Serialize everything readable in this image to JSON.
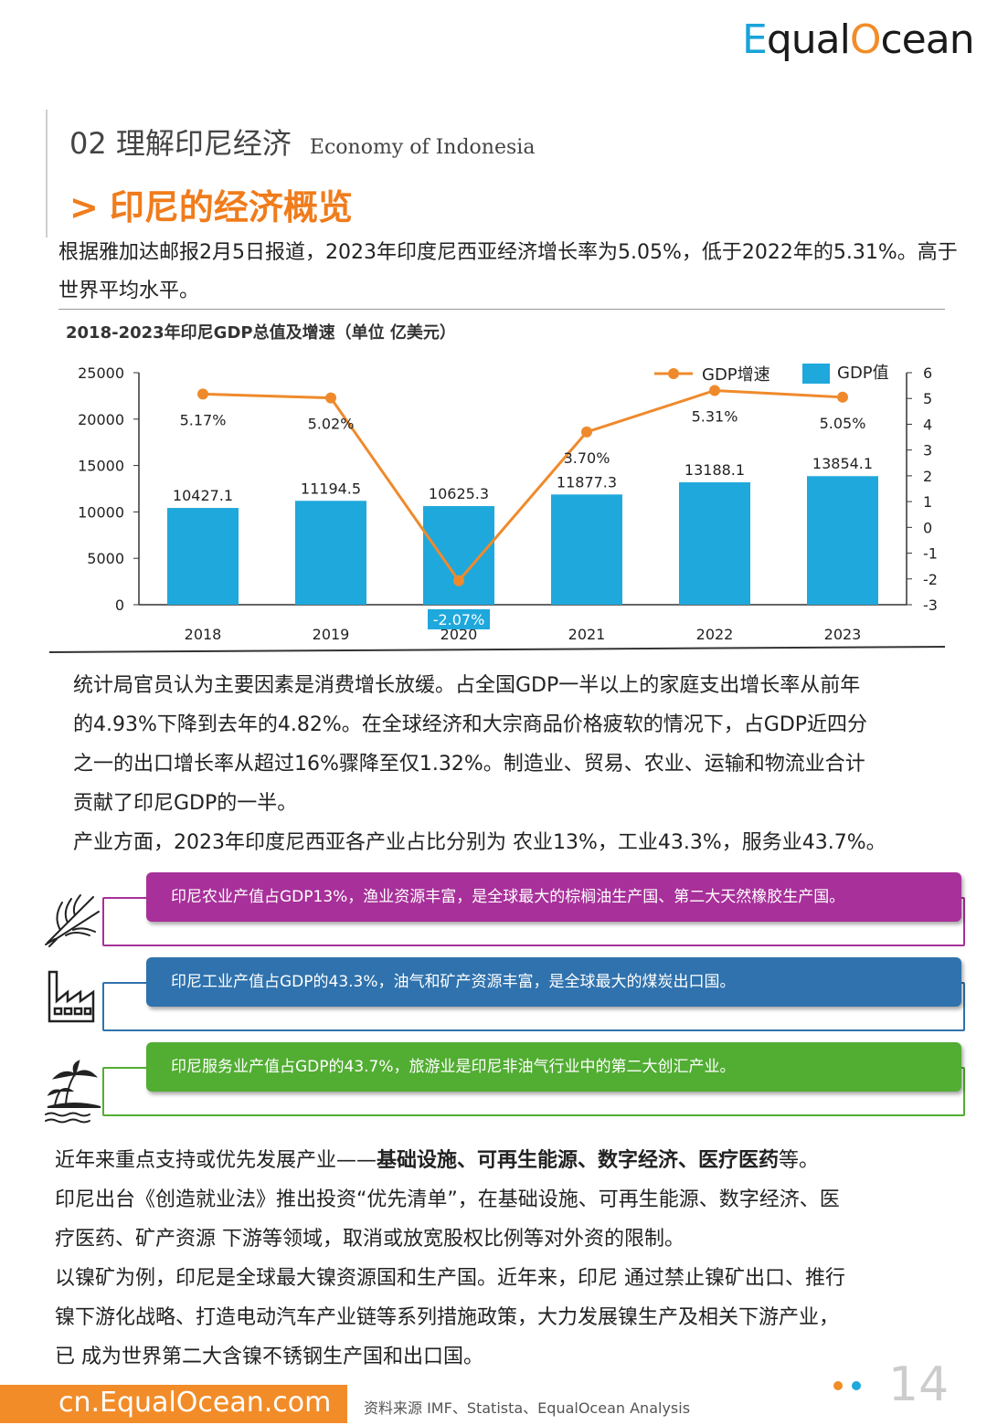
{
  "brand": {
    "logo_e": "E",
    "logo_text": "qual",
    "logo_o": "O",
    "logo_tail": "cean"
  },
  "section": {
    "number_title": "02 理解印尼经济",
    "english": "Economy of Indonesia"
  },
  "heading": {
    "chevron": ">",
    "title": "印尼的经济概览"
  },
  "intro": "根据雅加达邮报2月5日报道，2023年印度尼西亚经济增长率为5.05%，低于2022年的5.31%。高于世界平均水平。",
  "chart_title": "2018-2023年印尼GDP总值及增速（单位  亿美元）",
  "chart_data": {
    "type": "bar",
    "categories": [
      "2018",
      "2019",
      "2020",
      "2021",
      "2022",
      "2023"
    ],
    "series": [
      {
        "name": "GDP值",
        "type": "bar",
        "axis": "left",
        "values": [
          10427.1,
          11194.5,
          10625.3,
          11877.3,
          13188.1,
          13854.1
        ],
        "color": "#1fa8dc"
      },
      {
        "name": "GDP增速",
        "type": "line",
        "axis": "right",
        "values": [
          5.17,
          5.02,
          -2.07,
          3.7,
          5.31,
          5.05
        ],
        "color": "#ef8a2c"
      }
    ],
    "bar_labels": [
      "10427.1",
      "11194.5",
      "10625.3",
      "11877.3",
      "13188.1",
      "13854.1"
    ],
    "line_labels": [
      "5.17%",
      "5.02%",
      "-2.07%",
      "3.70%",
      "5.31%",
      "5.05%"
    ],
    "ylim_left": [
      0,
      25000
    ],
    "yticks_left": [
      "0",
      "5000",
      "10000",
      "15000",
      "20000",
      "25000"
    ],
    "ylim_right": [
      -3,
      6
    ],
    "yticks_right": [
      "-3",
      "-2",
      "-1",
      "0",
      "1",
      "2",
      "3",
      "4",
      "5",
      "6"
    ],
    "legend": "top-right",
    "grid": false
  },
  "paragraph1": [
    "统计局官员认为主要因素是消费增长放缓。占全国GDP一半以上的家庭支出增长率从前年",
    "的4.93%下降到去年的4.82%。在全球经济和大宗商品价格疲软的情况下，占GDP近四分",
    "之一的出口增长率从超过16%骤降至仅1.32%。制造业、贸易、农业、运输和物流业合计",
    "贡献了印尼GDP的一半。",
    "产业方面，2023年印度尼西亚各产业占比分别为  农业13%，工业43.3%，服务业43.7%。"
  ],
  "sectors": [
    {
      "icon": "wheat-icon",
      "text": "印尼农业产值占GDP13%，渔业资源丰富，是全球最大的棕榈油生产国、第二大天然橡胶生产国。",
      "color": "#a8309a"
    },
    {
      "icon": "factory-icon",
      "text": "印尼工业产值占GDP的43.3%，油气和矿产资源丰富，是全球最大的煤炭出口国。",
      "color": "#2f72ad"
    },
    {
      "icon": "palm-island-icon",
      "text": "印尼服务业产值占GDP的43.7%，旅游业是印尼非油气行业中的第二大创汇产业。",
      "color": "#52ad33"
    }
  ],
  "paragraph2": {
    "line1_prefix": "近年来重点支持或优先发展产业——",
    "line1_bold": "基础设施、可再生能源、数字经济、医疗医药",
    "line1_suffix": "等。",
    "lines": [
      "印尼出台《创造就业法》推出投资“优先清单”，在基础设施、可再生能源、数字经济、医",
      "疗医药、矿产资源 下游等领域，取消或放宽股权比例等对外资的限制。",
      "以镍矿为例，印尼是全球最大镍资源国和生产国。近年来，印尼 通过禁止镍矿出口、推行",
      "镍下游化战略、打造电动汽车产业链等系列措施政策，大力发展镍生产及相关下游产业，",
      "已 成为世界第二大含镍不锈钢生产国和出口国。"
    ]
  },
  "footer": {
    "url": "cn.EqualOcean.com",
    "source": "资料来源  IMF、Statista、EqualOcean Analysis",
    "page": "14"
  },
  "colors": {
    "accent": "#f28c28",
    "blue": "#1fa8dc",
    "dot_orange": "#f28c28",
    "dot_blue": "#1fa8dc"
  }
}
